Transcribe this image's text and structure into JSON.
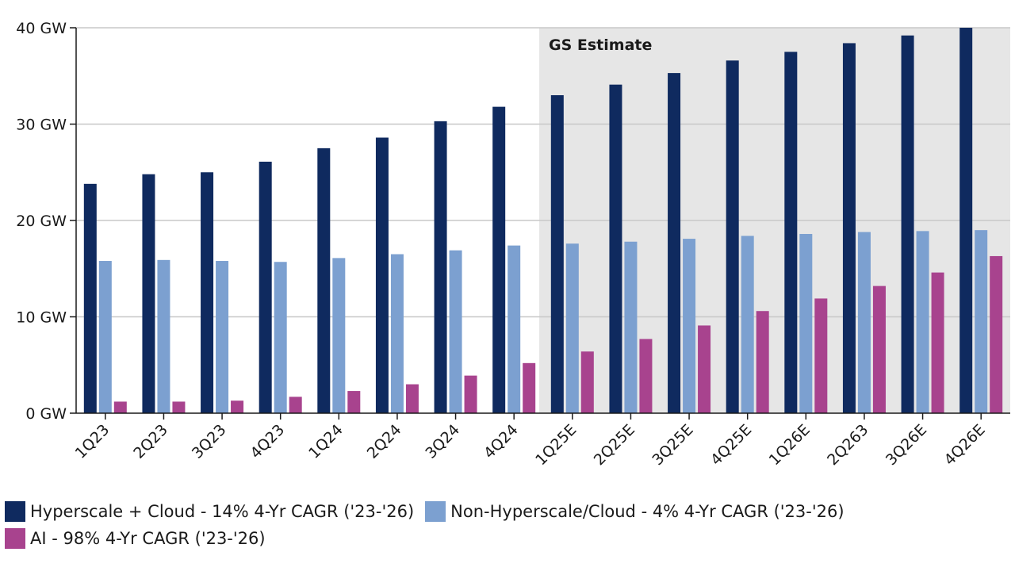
{
  "chart_data": {
    "type": "bar",
    "categories": [
      "1Q23",
      "2Q23",
      "3Q23",
      "4Q23",
      "1Q24",
      "2Q24",
      "3Q24",
      "4Q24",
      "1Q25E",
      "2Q25E",
      "3Q25E",
      "4Q25E",
      "1Q26E",
      "2Q263",
      "3Q26E",
      "4Q26E"
    ],
    "series": [
      {
        "name": "Hyperscale + Cloud - 14% 4-Yr CAGR ('23-'26)",
        "color": "#0f2a5f",
        "values": [
          23.8,
          24.8,
          25.0,
          26.1,
          27.5,
          28.6,
          30.3,
          31.8,
          33.0,
          34.1,
          35.3,
          36.6,
          37.5,
          38.4,
          39.2,
          40.0
        ]
      },
      {
        "name": "Non-Hyperscale/Cloud - 4% 4-Yr CAGR ('23-'26)",
        "color": "#7ca0d0",
        "values": [
          15.8,
          15.9,
          15.8,
          15.7,
          16.1,
          16.5,
          16.9,
          17.4,
          17.6,
          17.8,
          18.1,
          18.4,
          18.6,
          18.8,
          18.9,
          19.0
        ]
      },
      {
        "name": "AI - 98% 4-Yr CAGR ('23-'26)",
        "color": "#a8438e",
        "values": [
          1.2,
          1.2,
          1.3,
          1.7,
          2.3,
          3.0,
          3.9,
          5.2,
          6.4,
          7.7,
          9.1,
          10.6,
          11.9,
          13.2,
          14.6,
          16.3
        ]
      }
    ],
    "y_ticks": [
      "0 GW",
      "10 GW",
      "20 GW",
      "30 GW",
      "40 GW"
    ],
    "ylim": [
      0,
      40
    ],
    "grid": true,
    "estimate_region": {
      "label": "GS Estimate",
      "start_category": "1Q25E",
      "color": "#e6e6e6"
    },
    "legend_position": "bottom"
  }
}
